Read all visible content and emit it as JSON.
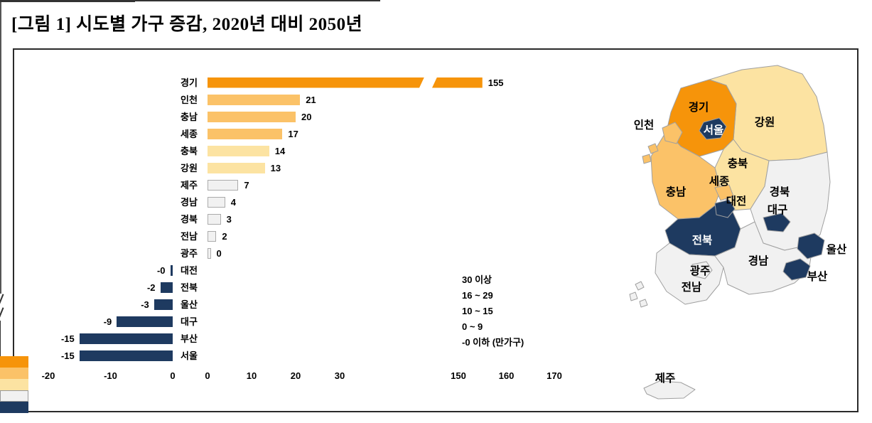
{
  "title": "[그림 1] 시도별 가구 증감, 2020년 대비 2050년",
  "palette": {
    "c30": "#F6940A",
    "c16": "#FBC268",
    "c10": "#FCE3A2",
    "c0": "#F1F1F1",
    "neg": "#1E3A60"
  },
  "chart_data": {
    "type": "bar",
    "orientation": "horizontal",
    "title": "시도별 가구 증감, 2020년 대비 2050년",
    "unit": "만가구",
    "categories": [
      "경기",
      "인천",
      "충남",
      "세종",
      "충북",
      "강원",
      "제주",
      "경남",
      "경북",
      "전남",
      "광주",
      "대전",
      "전북",
      "울산",
      "대구",
      "부산",
      "서울"
    ],
    "values": [
      155,
      21,
      20,
      17,
      14,
      13,
      7,
      4,
      3,
      2,
      0,
      -0.4,
      -2,
      -3,
      -9,
      -15,
      -15
    ],
    "value_labels": [
      "155",
      "21",
      "20",
      "17",
      "14",
      "13",
      "7",
      "4",
      "3",
      "2",
      "0",
      "-0",
      "-2",
      "-3",
      "-9",
      "-15",
      "-15"
    ],
    "x_ticks": {
      "negative": [
        -20,
        -10,
        0
      ],
      "positive": [
        0,
        10,
        20,
        30
      ],
      "after_break": [
        150,
        160,
        170
      ]
    },
    "axis_break": {
      "lower": 48,
      "upper": 145
    },
    "grid": "off",
    "legend_position": "inside-lower-middle"
  },
  "legend": [
    {
      "label": "30 이상",
      "cat": "c30"
    },
    {
      "label": "16 ~ 29",
      "cat": "c16"
    },
    {
      "label": "10 ~ 15",
      "cat": "c10"
    },
    {
      "label": "0 ~ 9",
      "cat": "c0"
    },
    {
      "label": "-0 이하 (만가구)",
      "cat": "neg"
    }
  ],
  "map": {
    "regions": [
      {
        "id": "gangwon",
        "label": "강원",
        "cat": "c10",
        "label_color": "#000000"
      },
      {
        "id": "gyeonggi",
        "label": "경기",
        "cat": "c30",
        "label_color": "#000000"
      },
      {
        "id": "chungnam",
        "label": "충남",
        "cat": "c16",
        "label_color": "#000000"
      },
      {
        "id": "chungbuk",
        "label": "충북",
        "cat": "c10",
        "label_color": "#000000"
      },
      {
        "id": "gyeongbuk",
        "label": "경북",
        "cat": "c0",
        "label_color": "#000000"
      },
      {
        "id": "jeonbuk",
        "label": "전북",
        "cat": "neg",
        "label_color": "#ffffff"
      },
      {
        "id": "jeonnam",
        "label": "전남",
        "cat": "c0",
        "label_color": "#000000"
      },
      {
        "id": "gyeongnam",
        "label": "경남",
        "cat": "c0",
        "label_color": "#000000"
      },
      {
        "id": "incheon",
        "label": "인천",
        "cat": "c16",
        "label_color": "#000000"
      },
      {
        "id": "seoul",
        "label": "서울",
        "cat": "neg",
        "label_color": "#ffffff"
      },
      {
        "id": "sejong",
        "label": "세종",
        "cat": "c16",
        "label_color": "#000000"
      },
      {
        "id": "daejeon",
        "label": "대전",
        "cat": "neg",
        "label_color": "#000000"
      },
      {
        "id": "daegu",
        "label": "대구",
        "cat": "neg",
        "label_color": "#000000"
      },
      {
        "id": "gwangju",
        "label": "광주",
        "cat": "c0",
        "label_color": "#000000"
      },
      {
        "id": "ulsan",
        "label": "울산",
        "cat": "neg",
        "label_color": "#000000"
      },
      {
        "id": "busan",
        "label": "부산",
        "cat": "neg",
        "label_color": "#000000"
      },
      {
        "id": "jeju",
        "label": "제주",
        "cat": "c0",
        "label_color": "#000000"
      }
    ]
  }
}
